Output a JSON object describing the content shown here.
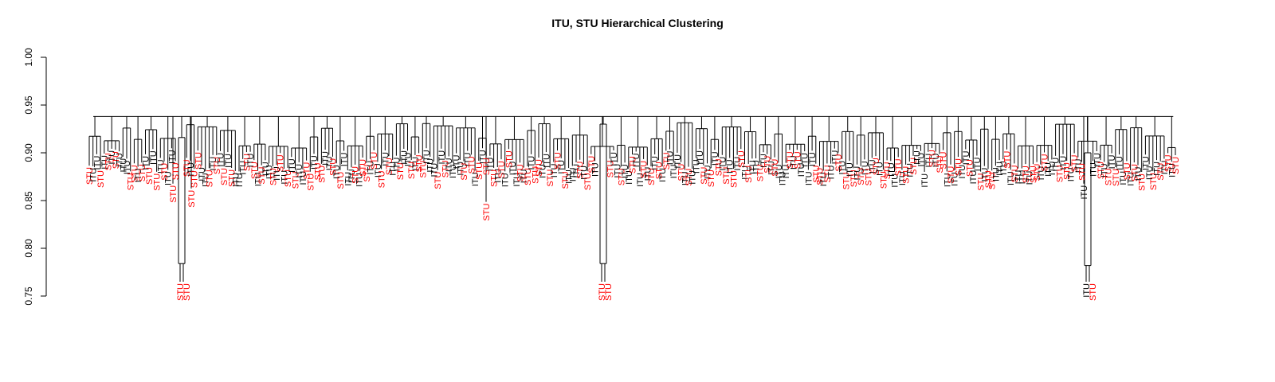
{
  "chart_data": {
    "type": "dendrogram",
    "title": "ITU, STU Hierarchical Clustering",
    "ylim": [
      0.75,
      1.0
    ],
    "yticks": [
      {
        "value": 0.75,
        "label": "0.75"
      },
      {
        "value": 0.8,
        "label": "0.80"
      },
      {
        "value": 0.85,
        "label": "0.85"
      },
      {
        "value": 0.9,
        "label": "0.90"
      },
      {
        "value": 0.95,
        "label": "0.95"
      },
      {
        "value": 1.0,
        "label": "1.00"
      }
    ],
    "groups": [
      {
        "name": "ITU",
        "color": "#000000"
      },
      {
        "name": "STU",
        "color": "#ff0000"
      }
    ],
    "root_height": 0.938,
    "outlier_clusters": [
      {
        "labels": [
          "STU",
          "STU"
        ],
        "merge_height": 0.784,
        "join_height": 0.916
      },
      {
        "labels": [
          "STU",
          "STU"
        ],
        "merge_height": 0.784,
        "join_height": 0.93
      },
      {
        "labels": [
          "ITU",
          "STU"
        ],
        "merge_height": 0.782,
        "join_height": 0.9
      }
    ],
    "standalone_labels": [
      {
        "label": "STU",
        "height": 0.866
      },
      {
        "label": "STU",
        "height": 0.861
      },
      {
        "label": "STU",
        "height": 0.847
      },
      {
        "label": "ITU",
        "height": 0.866
      }
    ],
    "leaf_band": [
      0.88,
      0.905
    ]
  }
}
